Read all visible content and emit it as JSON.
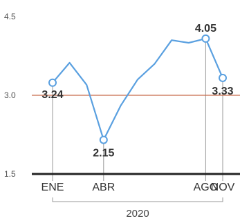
{
  "chart_data": {
    "type": "line",
    "title": "",
    "xlabel": "",
    "ylabel": "",
    "ylim": [
      1.5,
      4.5
    ],
    "y_ticks": [
      "4.5",
      "3.0",
      "1.5"
    ],
    "reference_line": 3.0,
    "grid": false,
    "x": [
      "2020-01",
      "2020-02",
      "2020-03",
      "2020-04",
      "2020-05",
      "2020-06",
      "2020-07",
      "2020-08",
      "2020-09",
      "2020-10",
      "2020-11"
    ],
    "x_tick_labels": [
      "ENE",
      "ABR",
      "AGO",
      "NOV"
    ],
    "x_group_label": "2020",
    "series": [
      {
        "values": [
          3.24,
          3.62,
          3.2,
          2.15,
          2.8,
          3.3,
          3.6,
          4.05,
          4.0,
          4.08,
          3.33
        ]
      }
    ],
    "data_labels": [
      "3.24",
      "2.15",
      "4.05",
      "3.33"
    ],
    "colors": {
      "line": "#5aa0e0",
      "reference": "#c86a4a",
      "baseline": "#222222",
      "guide": "#999999",
      "text": "#333333"
    }
  }
}
